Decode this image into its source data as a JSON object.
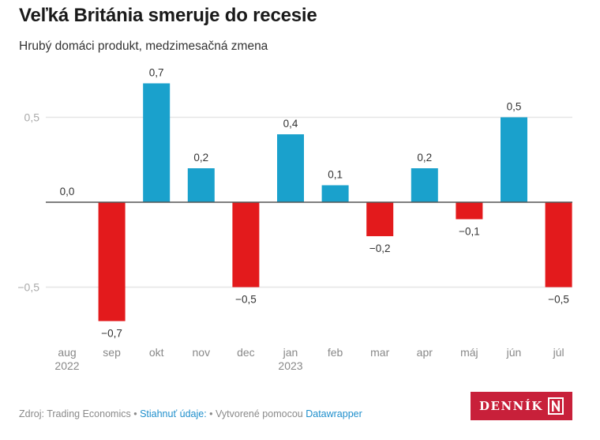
{
  "header": {
    "title": "Veľká Británia smeruje do recesie",
    "subtitle": "Hrubý domáci produkt, medzimesačná zmena"
  },
  "chart_data": {
    "type": "bar",
    "title": "Veľká Británia smeruje do recesie",
    "subtitle": "Hrubý domáci produkt, medzimesačná zmena",
    "xlabel": "",
    "ylabel": "",
    "categories": [
      "aug",
      "sep",
      "okt",
      "nov",
      "dec",
      "jan",
      "feb",
      "mar",
      "apr",
      "máj",
      "jún",
      "júl"
    ],
    "category_sublabels": [
      "2022",
      "",
      "",
      "",
      "",
      "2023",
      "",
      "",
      "",
      "",
      "",
      ""
    ],
    "values": [
      0.0,
      -0.7,
      0.7,
      0.2,
      -0.5,
      0.4,
      0.1,
      -0.2,
      0.2,
      -0.1,
      0.5,
      -0.5
    ],
    "value_labels": [
      "0,0",
      "−0,7",
      "0,7",
      "0,2",
      "−0,5",
      "0,4",
      "0,1",
      "−0,2",
      "0,2",
      "−0,1",
      "0,5",
      "−0,5"
    ],
    "yticks": [
      0.5,
      -0.5
    ],
    "ytick_labels": [
      "0,5",
      "−0,5"
    ],
    "ylim": [
      -0.7,
      0.7
    ],
    "grid": true,
    "colors": {
      "positive": "#1aa1cc",
      "negative": "#e31a1c",
      "gridline": "#e6e6e6",
      "zero_line": "#555555",
      "value_label": "#333333",
      "axis_label": "#888888",
      "tick_label": "#aaaaaa"
    }
  },
  "footer": {
    "source_label": "Zdroj: Trading Economics",
    "separator": " • ",
    "download_link": "Stiahnuť údaje:",
    "made_with": "Vytvorené pomocou",
    "datawrapper_link": "Datawrapper"
  },
  "logo": {
    "text": "DENNÍK",
    "mark": "N",
    "color": "#c8203a"
  }
}
